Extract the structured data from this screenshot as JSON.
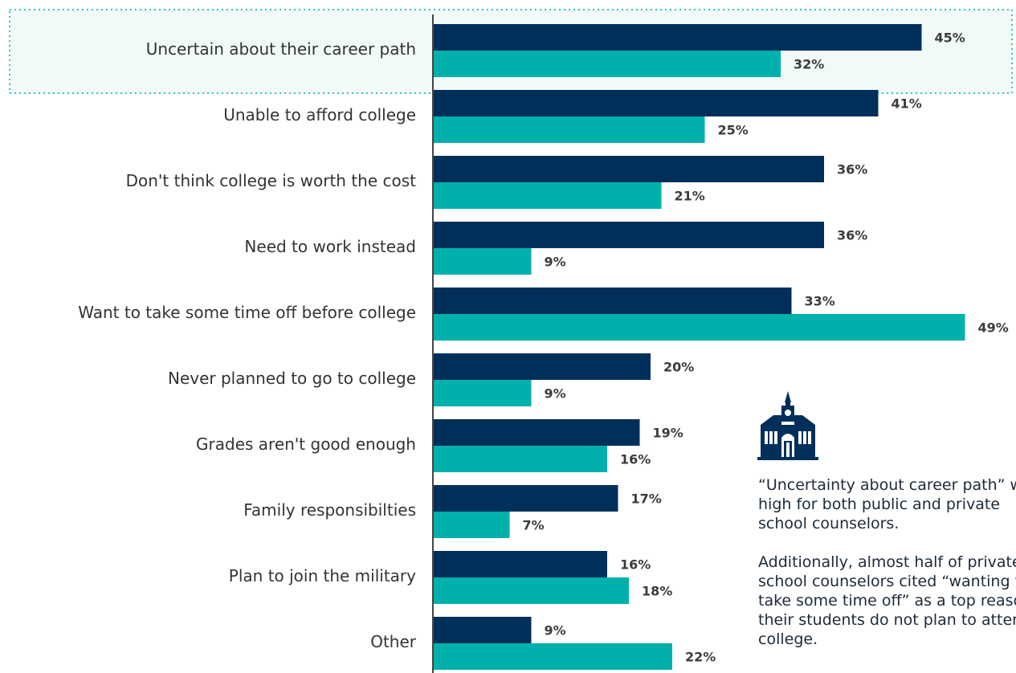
{
  "chart_data": {
    "type": "bar",
    "orientation": "horizontal",
    "categories": [
      "Uncertain about their career path",
      "Unable to afford college",
      "Don't think college is worth the cost",
      "Need to work instead",
      "Want to take some time off before college",
      "Never planned to go to college",
      "Grades aren't good enough",
      "Family responsibilties",
      "Plan to join the military",
      "Other"
    ],
    "series": [
      {
        "color": "#00305a",
        "values": [
          45,
          41,
          36,
          36,
          33,
          20,
          19,
          17,
          16,
          9
        ],
        "labels": [
          "45%",
          "41%",
          "36%",
          "36%",
          "33%",
          "20%",
          "19%",
          "17%",
          "16%",
          "9%"
        ]
      },
      {
        "color": "#00b0aa",
        "values": [
          32,
          25,
          21,
          9,
          49,
          9,
          16,
          7,
          18,
          22
        ],
        "labels": [
          "32%",
          "25%",
          "21%",
          "9%",
          "49%",
          "9%",
          "16%",
          "7%",
          "18%",
          "22%"
        ]
      }
    ],
    "highlighted_category": "Uncertain about their career path",
    "highlight_color": "#2ec4b6",
    "grid": false,
    "legend": "none"
  },
  "callout": {
    "icon": "school-building-icon",
    "icon_color": "#00305a",
    "paragraph1": "“Uncertainty about career path” was high for both public and private school counselors.",
    "paragraph2": "Additionally, almost half of private school counselors cited “wanting to take some time off” as a top reason their students do not plan to attend college."
  }
}
